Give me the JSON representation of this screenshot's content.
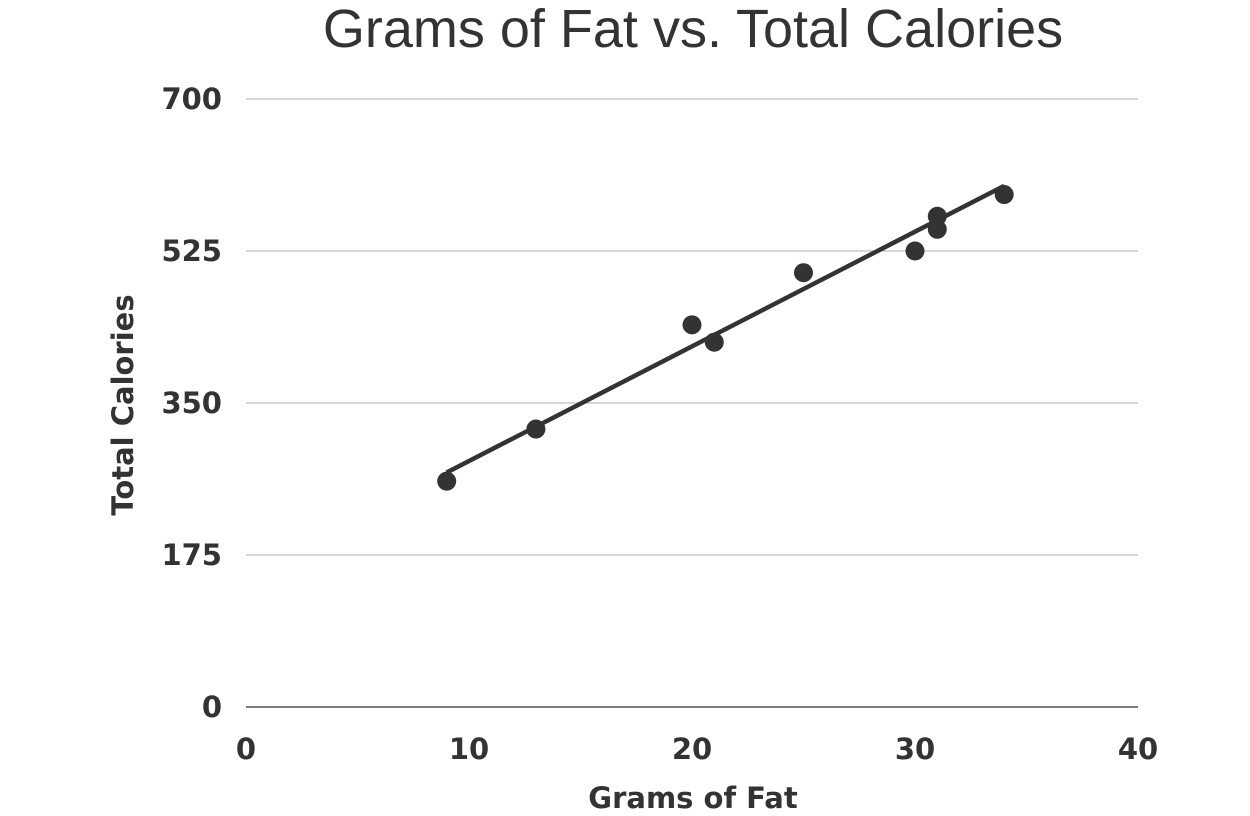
{
  "chart_data": {
    "type": "scatter",
    "title": "Grams of Fat vs. Total Calories",
    "xlabel": "Grams of Fat",
    "ylabel": "Total Calories",
    "xlim": [
      0,
      40
    ],
    "ylim": [
      0,
      700
    ],
    "x_ticks": [
      "0",
      "10",
      "20",
      "30",
      "40"
    ],
    "y_ticks": [
      "0",
      "175",
      "350",
      "525",
      "700"
    ],
    "grid": "horizontal",
    "colors": {
      "point": "#333333",
      "trendline": "#333333",
      "grid": "#bdbdbd",
      "axis": "#555555"
    },
    "points": [
      {
        "x": 9,
        "y": 260
      },
      {
        "x": 13,
        "y": 320
      },
      {
        "x": 20,
        "y": 440
      },
      {
        "x": 21,
        "y": 420
      },
      {
        "x": 25,
        "y": 500
      },
      {
        "x": 30,
        "y": 525
      },
      {
        "x": 31,
        "y": 550
      },
      {
        "x": 31,
        "y": 565
      },
      {
        "x": 34,
        "y": 590
      }
    ],
    "trendline": {
      "x": [
        9,
        34
      ],
      "y": [
        270,
        600
      ]
    }
  }
}
